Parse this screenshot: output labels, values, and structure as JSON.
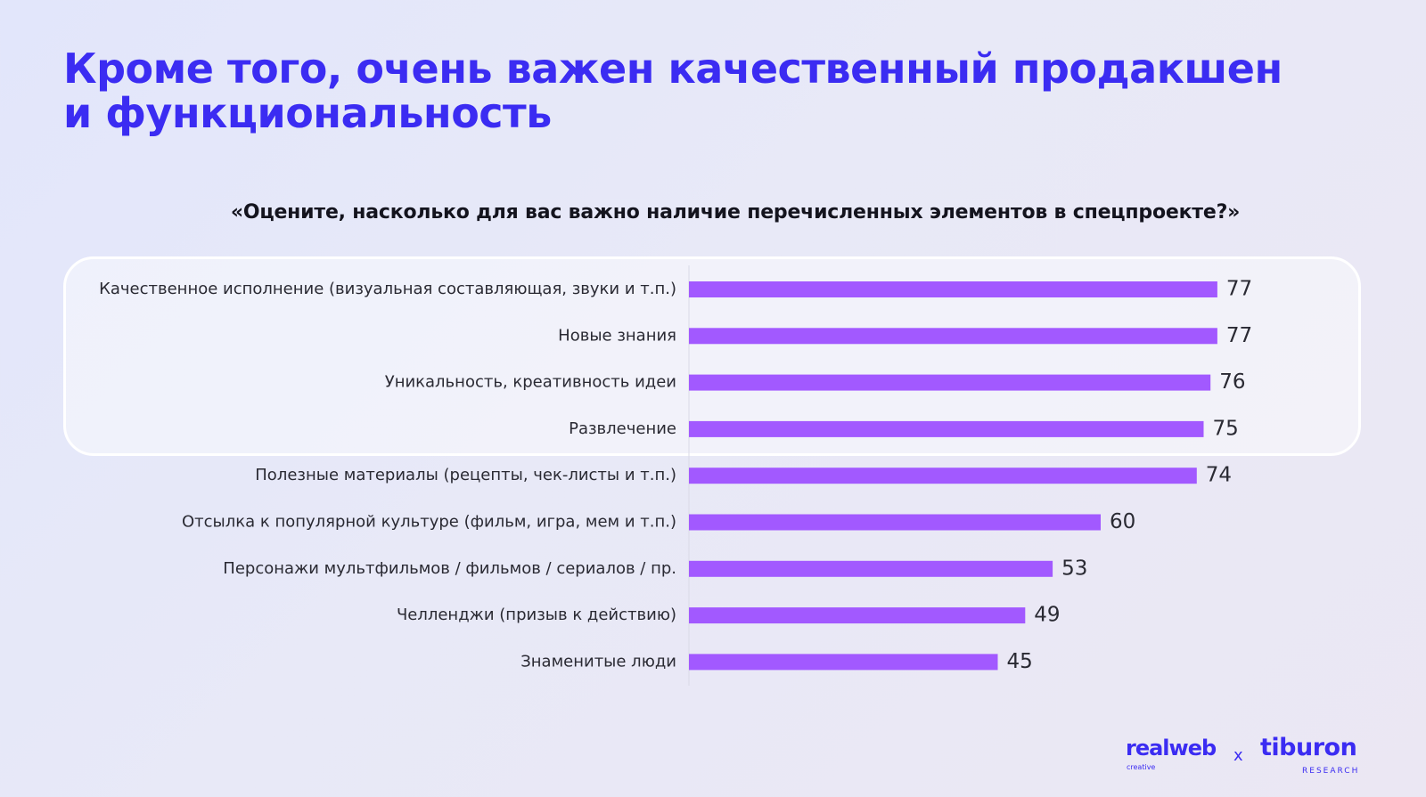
{
  "slide": {
    "title_line1": "Кроме того, очень важен качественный продакшен",
    "title_line2": "и функциональность"
  },
  "chart_data": {
    "type": "bar",
    "orientation": "horizontal",
    "title": "«Оцените, насколько для вас важно наличие перечисленных элементов в спецпроекте?»",
    "categories": [
      "Качественное исполнение (визуальная составляющая, звуки и т.п.)",
      "Новые знания",
      "Уникальность, креативность идеи",
      "Развлечение",
      "Полезные материалы (рецепты, чек-листы и т.п.)",
      "Отсылка к популярной культуре (фильм, игра, мем и т.п.)",
      "Персонажи мультфильмов / фильмов / сериалов / пр.",
      "Челленджи (призыв к действию)",
      "Знаменитые люди"
    ],
    "values": [
      77,
      77,
      76,
      75,
      74,
      60,
      53,
      49,
      45
    ],
    "highlighted_count": 4,
    "bar_color": "#a259ff",
    "axis_line": true,
    "grid": false
  },
  "logos": {
    "realweb": "realweb",
    "realweb_sub": "creative",
    "separator": "x",
    "tiburon": "tiburon",
    "tiburon_sub": "RESEARCH"
  },
  "colors": {
    "accent": "#3b2cf2",
    "bar": "#a259ff"
  }
}
